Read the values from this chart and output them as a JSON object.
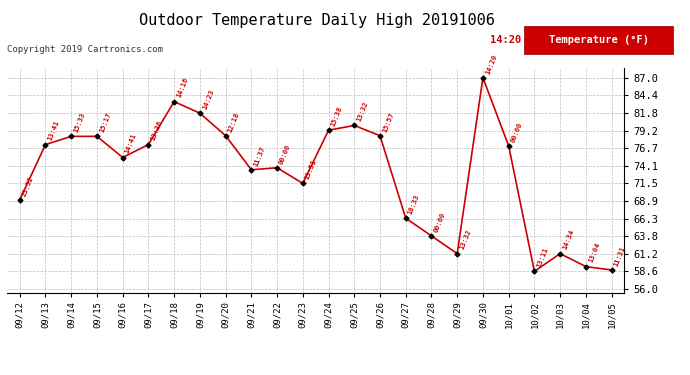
{
  "title": "Outdoor Temperature Daily High 20191006",
  "copyright": "Copyright 2019 Cartronics.com",
  "legend_label": "Temperature (°F)",
  "dates": [
    "09/12",
    "09/13",
    "09/14",
    "09/15",
    "09/16",
    "09/17",
    "09/18",
    "09/19",
    "09/20",
    "09/21",
    "09/22",
    "09/23",
    "09/24",
    "09/25",
    "09/26",
    "09/27",
    "09/28",
    "09/29",
    "09/30",
    "10/01",
    "10/02",
    "10/03",
    "10/04",
    "10/05"
  ],
  "temperatures": [
    69.1,
    77.2,
    78.4,
    78.4,
    75.3,
    77.2,
    83.5,
    81.8,
    78.5,
    73.5,
    73.8,
    71.5,
    79.3,
    80.0,
    78.5,
    66.4,
    63.8,
    61.2,
    87.0,
    77.0,
    58.6,
    61.2,
    59.3,
    58.8
  ],
  "time_labels": [
    "23:52",
    "13:41",
    "15:33",
    "15:17",
    "14:41",
    "13:36",
    "14:16",
    "14:23",
    "12:18",
    "11:37",
    "00:00",
    "13:51",
    "15:38",
    "13:32",
    "15:57",
    "18:33",
    "00:00",
    "13:32",
    "14:20",
    "00:00",
    "13:11",
    "14:34",
    "13:04",
    "11:31"
  ],
  "line_color": "#cc0000",
  "marker_color": "#000000",
  "grid_color": "#bbbbbb",
  "bg_color": "#ffffff",
  "title_fontsize": 11,
  "ylabel_values": [
    56.0,
    58.6,
    61.2,
    63.8,
    66.3,
    68.9,
    71.5,
    74.1,
    76.7,
    79.2,
    81.8,
    84.4,
    87.0
  ],
  "ylim_min": 55.5,
  "ylim_max": 88.5,
  "legend_bg": "#cc0000",
  "legend_text_color": "#ffffff"
}
